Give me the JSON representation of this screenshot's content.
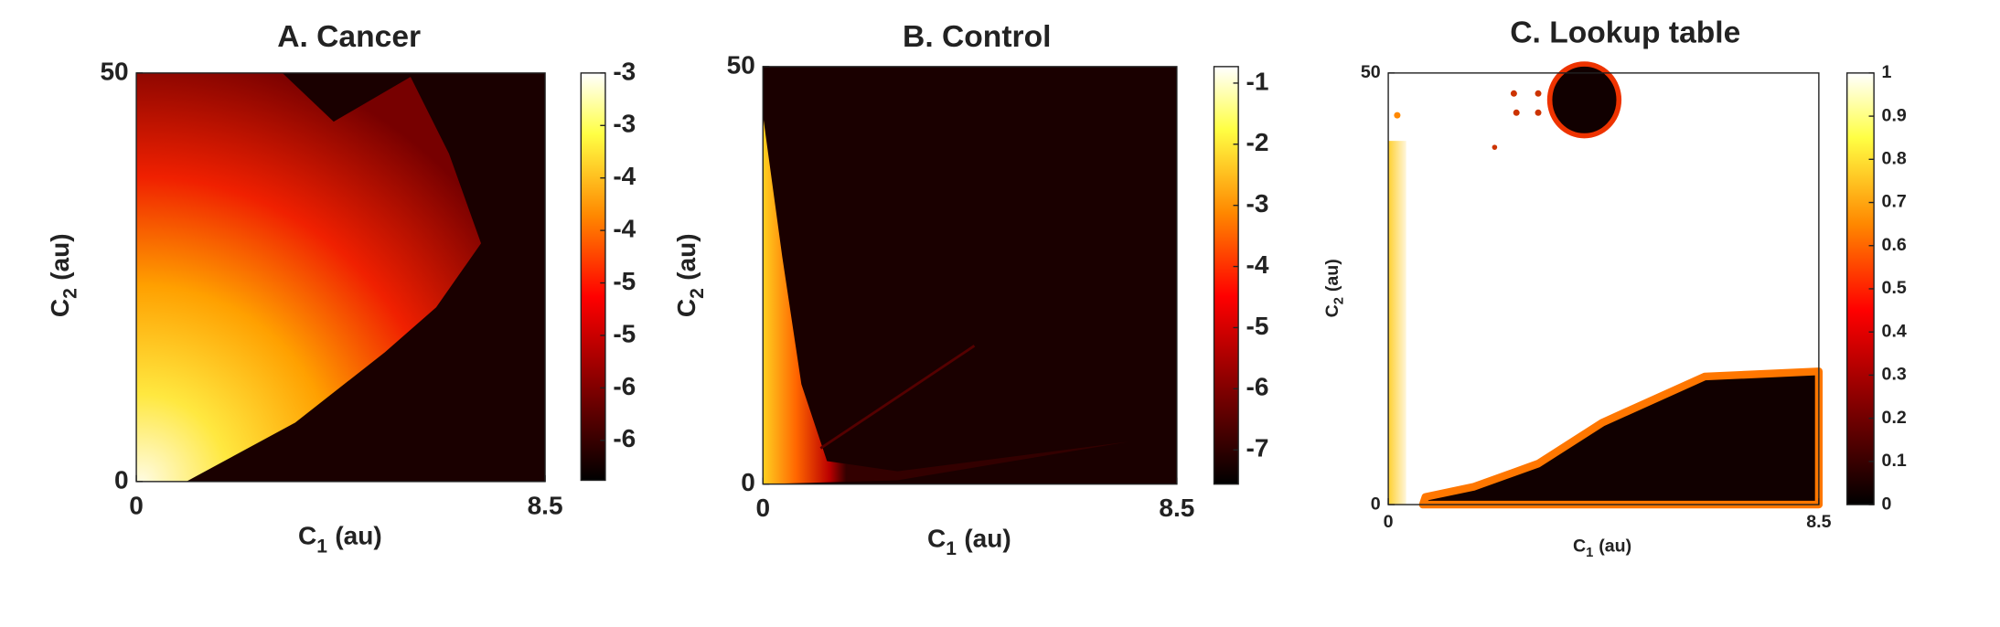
{
  "chart_data": [
    {
      "type": "heatmap",
      "title": "A. Cancer",
      "xlabel": {
        "base": "C",
        "sub": "1",
        "unit": "(au)"
      },
      "ylabel": {
        "base": "C",
        "sub": "2",
        "unit": "(au)"
      },
      "xlim": [
        0,
        8.5
      ],
      "ylim": [
        0,
        50
      ],
      "xticks": [
        0,
        8.5
      ],
      "yticks": [
        0,
        50
      ],
      "colormap": "hot",
      "colorbar": {
        "lim": [
          -6.48,
          -2.6
        ],
        "ticks": [
          {
            "value": -2.6,
            "label": "-3"
          },
          {
            "value": -3.1,
            "label": "-3"
          },
          {
            "value": -3.6,
            "label": "-4"
          },
          {
            "value": -4.1,
            "label": "-4"
          },
          {
            "value": -4.6,
            "label": "-5"
          },
          {
            "value": -5.1,
            "label": "-5"
          },
          {
            "value": -5.6,
            "label": "-6"
          },
          {
            "value": -6.1,
            "label": "-6"
          }
        ]
      }
    },
    {
      "type": "heatmap",
      "title": "B. Control",
      "xlabel": {
        "base": "C",
        "sub": "1",
        "unit": "(au)"
      },
      "ylabel": {
        "base": "C",
        "sub": "2",
        "unit": "(au)"
      },
      "xlim": [
        0,
        8.5
      ],
      "ylim": [
        0,
        50
      ],
      "xticks": [
        0,
        8.5
      ],
      "yticks": [
        0,
        50
      ],
      "colormap": "hot",
      "colorbar": {
        "lim": [
          -7.56,
          -0.73
        ],
        "ticks": [
          -1,
          -2,
          -3,
          -4,
          -5,
          -6,
          -7
        ]
      }
    },
    {
      "type": "heatmap",
      "title": "C. Lookup table",
      "xlabel": {
        "base": "C",
        "sub": "1",
        "unit": "(au)"
      },
      "ylabel": {
        "base": "C",
        "sub": "2",
        "unit": "(au)"
      },
      "xlim": [
        0,
        8.5
      ],
      "ylim": [
        0,
        50
      ],
      "xticks": [
        0,
        8.5
      ],
      "yticks": [
        0,
        50
      ],
      "colormap": "hot",
      "colorbar": {
        "lim": [
          0,
          1
        ],
        "ticks": [
          0,
          0.1,
          0.2,
          0.3,
          0.4,
          0.5,
          0.6,
          0.7,
          0.8,
          0.9,
          1
        ]
      }
    }
  ]
}
